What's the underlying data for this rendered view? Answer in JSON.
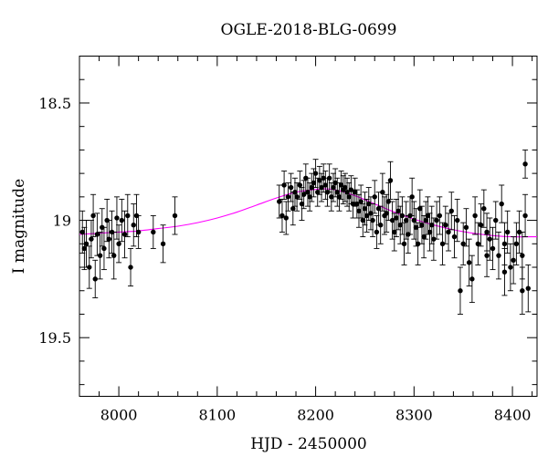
{
  "chart_data": {
    "type": "scatter",
    "title": "OGLE-2018-BLG-0699",
    "xlabel": "HJD - 2450000",
    "ylabel": "I magnitude",
    "xlim": [
      7960,
      8425
    ],
    "ylim": [
      19.75,
      18.3
    ],
    "y_inverted": true,
    "xticks_major": [
      8000,
      8100,
      8200,
      8300,
      8400
    ],
    "xticks_minor_step": 20,
    "yticks_major": [
      18.5,
      19,
      19.5
    ],
    "ytick_labels": [
      "18.5",
      "19",
      "19.5"
    ],
    "yticks_minor_step": 0.1,
    "grid": false,
    "colors": {
      "points": "#000000",
      "model": "#ff00ff"
    },
    "model": {
      "name": "",
      "x": [
        7960,
        7980,
        8000,
        8020,
        8040,
        8060,
        8080,
        8100,
        8120,
        8140,
        8160,
        8180,
        8200,
        8210,
        8220,
        8240,
        8260,
        8280,
        8300,
        8320,
        8340,
        8360,
        8380,
        8400,
        8425
      ],
      "y": [
        19.06,
        19.055,
        19.05,
        19.045,
        19.035,
        19.025,
        19.01,
        18.99,
        18.965,
        18.935,
        18.905,
        18.88,
        18.868,
        18.866,
        18.87,
        18.895,
        18.93,
        18.965,
        18.995,
        19.02,
        19.04,
        19.055,
        19.065,
        19.07,
        19.07
      ]
    },
    "series": [
      {
        "x": [
          7963,
          7965,
          7967,
          7970,
          7972,
          7974,
          7976,
          7978,
          7981,
          7983,
          7985,
          7988,
          7990,
          7993,
          7995,
          7998,
          8000,
          8003,
          8006,
          8009,
          8012,
          8015,
          8018,
          8020,
          8035,
          8045,
          8057,
          8163,
          8166,
          8168,
          8170,
          8172,
          8175,
          8177,
          8179,
          8181,
          8184,
          8186,
          8188,
          8190,
          8192,
          8194,
          8196,
          8198,
          8200,
          8202,
          8204,
          8206,
          8208,
          8210,
          8212,
          8214,
          8216,
          8218,
          8220,
          8222,
          8224,
          8226,
          8228,
          8230,
          8232,
          8234,
          8236,
          8238,
          8240,
          8242,
          8244,
          8246,
          8248,
          8250,
          8252,
          8254,
          8256,
          8258,
          8260,
          8262,
          8264,
          8266,
          8268,
          8270,
          8272,
          8274,
          8276,
          8278,
          8280,
          8282,
          8284,
          8286,
          8288,
          8290,
          8292,
          8294,
          8296,
          8298,
          8300,
          8302,
          8304,
          8306,
          8308,
          8310,
          8312,
          8314,
          8316,
          8318,
          8320,
          8323,
          8326,
          8329,
          8332,
          8335,
          8338,
          8341,
          8344,
          8347,
          8350,
          8353,
          8356,
          8359,
          8362,
          8365,
          8368,
          8371,
          8374,
          8377,
          8380,
          8383,
          8386,
          8389,
          8392,
          8395,
          8398,
          8401,
          8404,
          8407,
          8410,
          8413,
          8416
        ],
        "y": [
          19.05,
          19.12,
          19.1,
          19.2,
          19.08,
          18.98,
          19.25,
          19.06,
          19.15,
          19.03,
          19.12,
          19.0,
          19.08,
          19.05,
          19.15,
          18.99,
          19.1,
          19.0,
          19.06,
          18.98,
          19.2,
          19.02,
          18.98,
          19.05,
          19.05,
          19.1,
          18.98,
          18.92,
          18.98,
          18.85,
          18.99,
          18.9,
          18.86,
          18.95,
          18.88,
          18.9,
          18.85,
          18.93,
          18.89,
          18.82,
          18.88,
          18.9,
          18.86,
          18.84,
          18.8,
          18.88,
          18.83,
          18.86,
          18.82,
          18.85,
          18.88,
          18.82,
          18.9,
          18.86,
          18.84,
          18.88,
          18.9,
          18.85,
          18.87,
          18.86,
          18.88,
          18.9,
          18.87,
          18.93,
          18.88,
          18.93,
          18.96,
          18.92,
          19.0,
          18.95,
          18.98,
          18.93,
          18.97,
          19.0,
          18.9,
          19.05,
          18.95,
          19.02,
          18.88,
          18.98,
          18.97,
          18.92,
          18.83,
          19.0,
          19.05,
          18.99,
          18.96,
          19.02,
          18.98,
          19.1,
          19.0,
          19.06,
          18.98,
          18.9,
          19.0,
          19.03,
          19.1,
          18.95,
          19.02,
          19.07,
          19.0,
          18.98,
          19.05,
          19.02,
          19.08,
          19.0,
          18.98,
          19.1,
          19.02,
          19.05,
          18.96,
          19.07,
          19.0,
          19.3,
          19.1,
          19.03,
          19.18,
          19.25,
          18.98,
          19.1,
          19.02,
          18.95,
          19.05,
          19.08,
          19.12,
          19.0,
          19.15,
          18.93,
          19.1,
          19.05,
          19.2,
          19.17,
          19.1,
          19.05,
          19.15,
          18.98,
          19.29
        ],
        "err": [
          0.09,
          0.09,
          0.1,
          0.09,
          0.08,
          0.09,
          0.08,
          0.09,
          0.1,
          0.08,
          0.09,
          0.09,
          0.08,
          0.09,
          0.1,
          0.09,
          0.08,
          0.09,
          0.1,
          0.09,
          0.08,
          0.09,
          0.09,
          0.07,
          0.07,
          0.08,
          0.08,
          0.07,
          0.07,
          0.06,
          0.07,
          0.06,
          0.06,
          0.07,
          0.06,
          0.06,
          0.06,
          0.07,
          0.06,
          0.06,
          0.06,
          0.06,
          0.06,
          0.06,
          0.06,
          0.06,
          0.06,
          0.06,
          0.06,
          0.06,
          0.06,
          0.06,
          0.06,
          0.06,
          0.06,
          0.06,
          0.06,
          0.06,
          0.06,
          0.06,
          0.06,
          0.06,
          0.06,
          0.06,
          0.06,
          0.06,
          0.07,
          0.07,
          0.07,
          0.07,
          0.07,
          0.07,
          0.07,
          0.07,
          0.07,
          0.07,
          0.07,
          0.08,
          0.08,
          0.08,
          0.08,
          0.08,
          0.08,
          0.08,
          0.08,
          0.08,
          0.08,
          0.08,
          0.08,
          0.09,
          0.08,
          0.08,
          0.08,
          0.08,
          0.08,
          0.08,
          0.09,
          0.08,
          0.08,
          0.09,
          0.08,
          0.08,
          0.08,
          0.08,
          0.09,
          0.08,
          0.08,
          0.09,
          0.08,
          0.08,
          0.08,
          0.09,
          0.09,
          0.1,
          0.09,
          0.08,
          0.1,
          0.1,
          0.08,
          0.09,
          0.09,
          0.08,
          0.08,
          0.09,
          0.09,
          0.08,
          0.1,
          0.08,
          0.09,
          0.09,
          0.1,
          0.1,
          0.09,
          0.09,
          0.1,
          0.09,
          0.1
        ]
      },
      {
        "x": [
          8413,
          8410,
          8392,
          8374
        ],
        "y": [
          18.76,
          19.3,
          19.22,
          19.15
        ],
        "err": [
          0.06,
          0.1,
          0.1,
          0.09
        ]
      }
    ]
  }
}
